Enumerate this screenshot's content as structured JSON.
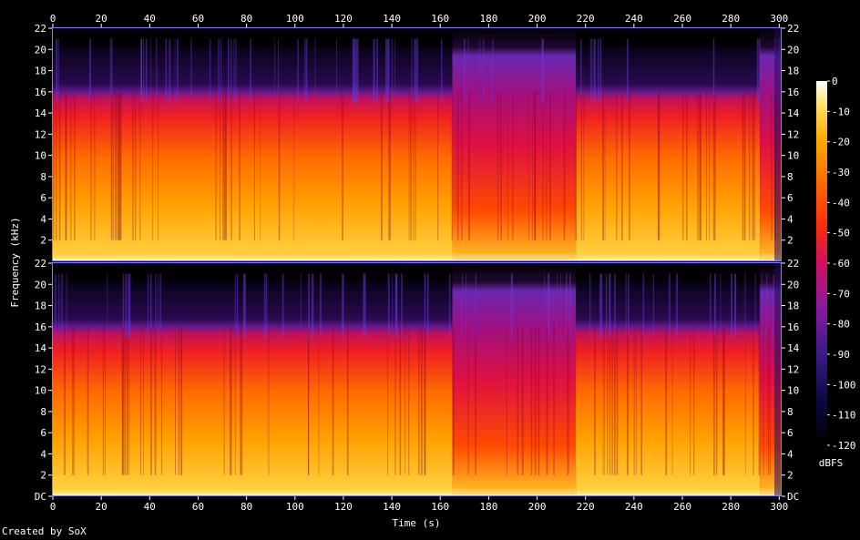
{
  "chart_data": {
    "type": "heatmap",
    "xlabel": "Time (s)",
    "ylabel": "Frequency (kHz)",
    "xlim": [
      0,
      301
    ],
    "ylim": [
      0,
      22
    ],
    "x_ticks": [
      0,
      20,
      40,
      60,
      80,
      100,
      120,
      140,
      160,
      180,
      200,
      220,
      240,
      260,
      280,
      300
    ],
    "x_tick_labels": [
      "0",
      "20",
      "40",
      "60",
      "80",
      "100",
      "120",
      "140",
      "160",
      "180",
      "200",
      "220",
      "240",
      "260",
      "280",
      "300"
    ],
    "y_ticks": [
      0,
      2,
      4,
      6,
      8,
      10,
      12,
      14,
      16,
      18,
      20,
      22
    ],
    "y_tick_labels": [
      "DC",
      "2",
      "4",
      "6",
      "8",
      "10",
      "12",
      "14",
      "16",
      "18",
      "20",
      "22"
    ],
    "channels": 2,
    "colorbar": {
      "label": "dBFS",
      "range": [
        -120,
        0
      ],
      "ticks": [
        0,
        -10,
        -20,
        -30,
        -40,
        -50,
        -60,
        -70,
        -80,
        -90,
        -100,
        -110,
        -120
      ],
      "tick_labels": [
        "0",
        "-10",
        "-20",
        "-30",
        "-40",
        "-50",
        "-60",
        "-70",
        "-80",
        "-90",
        "-100",
        "-110",
        "-120"
      ]
    },
    "segments": [
      {
        "start": 0,
        "end": 165,
        "cutoff_khz": 16,
        "level": "loud"
      },
      {
        "start": 165,
        "end": 216,
        "cutoff_khz": 20,
        "level": "mixed"
      },
      {
        "start": 216,
        "end": 292,
        "cutoff_khz": 16,
        "level": "loud"
      },
      {
        "start": 292,
        "end": 301,
        "cutoff_khz": 20,
        "level": "fade"
      }
    ]
  },
  "footer": {
    "credit": "Created by SoX"
  }
}
